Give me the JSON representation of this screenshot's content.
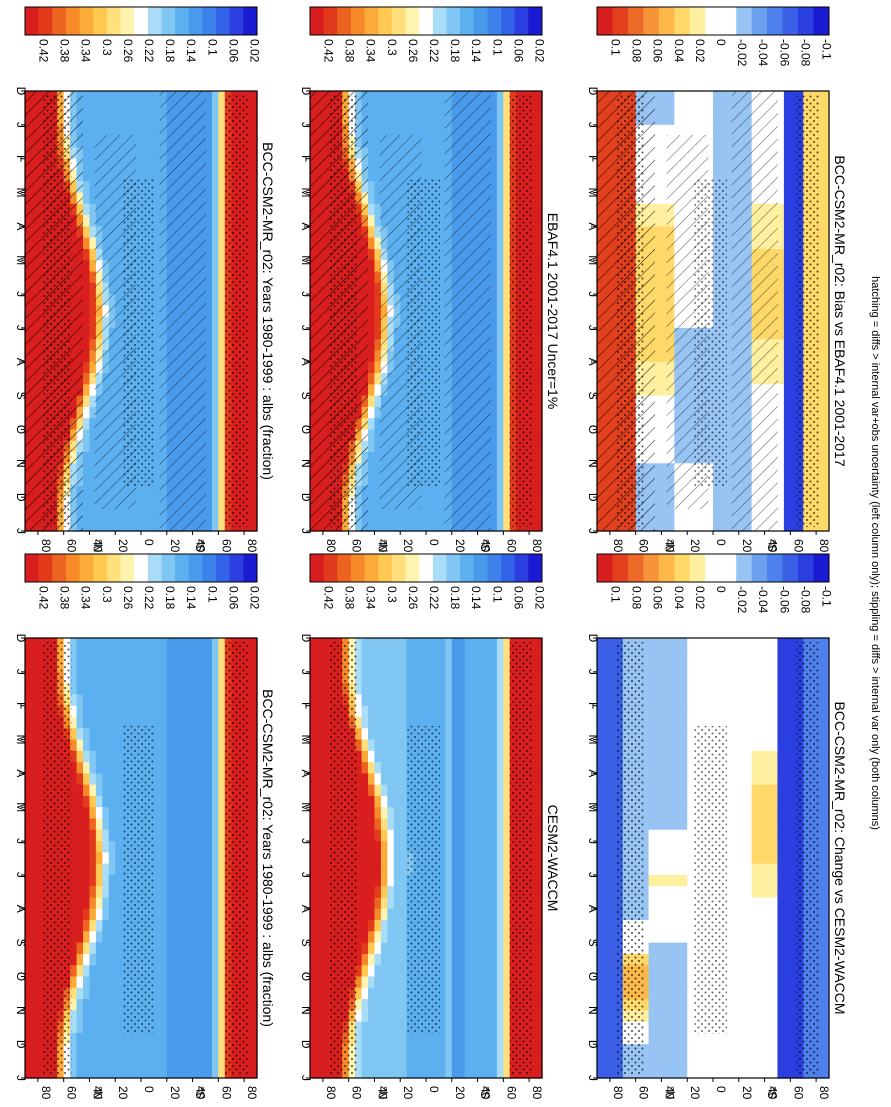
{
  "footnote": "hatching = diffs > internal var+obs uncertainty (left column only); stippling = diffs > internal var only (both columns)",
  "months": [
    "D",
    "J",
    "F",
    "M",
    "A",
    "M",
    "J",
    "J",
    "A",
    "S",
    "O",
    "N",
    "D",
    "J"
  ],
  "lat_labels": [
    "80",
    "60",
    "40",
    "20",
    "0",
    "20",
    "40",
    "60",
    "80"
  ],
  "hemi_labels": [
    "°N",
    "°S"
  ],
  "chart_data": [
    {
      "type": "heatmap",
      "title": "BCC-CSM2-MR_r02: Years 1980-1999 : albs (fraction)",
      "x": "month",
      "y": "latitude",
      "ylim": [
        -90,
        90
      ],
      "colorbar": [
        "0.42",
        "0.38",
        "0.34",
        "0.3",
        "0.26",
        "0.22",
        "0.18",
        "0.14",
        "0.1",
        "0.06",
        "0.02"
      ],
      "range": [
        0,
        0.44
      ],
      "palette": "albedo",
      "overlay": [
        "hatching",
        "stippling"
      ]
    },
    {
      "type": "heatmap",
      "title": "EBAF4.1 2001-2017 Uncer=1%",
      "x": "month",
      "y": "latitude",
      "ylim": [
        -90,
        90
      ],
      "colorbar": [
        "0.42",
        "0.38",
        "0.34",
        "0.3",
        "0.26",
        "0.22",
        "0.18",
        "0.14",
        "0.1",
        "0.06",
        "0.02"
      ],
      "range": [
        0,
        0.44
      ],
      "palette": "albedo",
      "overlay": [
        "hatching",
        "stippling"
      ]
    },
    {
      "type": "heatmap",
      "title": "BCC-CSM2-MR_r02: Bias vs EBAF4.1 2001-2017",
      "x": "month",
      "y": "latitude",
      "ylim": [
        -90,
        90
      ],
      "colorbar": [
        "0.1",
        "0.08",
        "0.06",
        "0.04",
        "0.02",
        "0",
        "-0.02",
        "-0.04",
        "-0.06",
        "-0.08",
        "-0.1"
      ],
      "range": [
        -0.12,
        0.12
      ],
      "palette": "diff",
      "overlay": [
        "hatching",
        "stippling"
      ]
    },
    {
      "type": "heatmap",
      "title": "BCC-CSM2-MR_r02: Years 1980-1999 : albs (fraction)",
      "x": "month",
      "y": "latitude",
      "ylim": [
        -90,
        90
      ],
      "colorbar": [
        "0.42",
        "0.38",
        "0.34",
        "0.3",
        "0.26",
        "0.22",
        "0.18",
        "0.14",
        "0.1",
        "0.06",
        "0.02"
      ],
      "range": [
        0,
        0.44
      ],
      "palette": "albedo",
      "overlay": [
        "stippling"
      ]
    },
    {
      "type": "heatmap",
      "title": "CESM2-WACCM",
      "x": "month",
      "y": "latitude",
      "ylim": [
        -90,
        90
      ],
      "colorbar": [
        "0.42",
        "0.38",
        "0.34",
        "0.3",
        "0.26",
        "0.22",
        "0.18",
        "0.14",
        "0.1",
        "0.06",
        "0.02"
      ],
      "range": [
        0,
        0.44
      ],
      "palette": "albedo",
      "overlay": [
        "stippling"
      ]
    },
    {
      "type": "heatmap",
      "title": "BCC-CSM2-MR_r02: Change vs CESM2-WACCM",
      "x": "month",
      "y": "latitude",
      "ylim": [
        -90,
        90
      ],
      "colorbar": [
        "0.1",
        "0.08",
        "0.06",
        "0.04",
        "0.02",
        "0",
        "-0.02",
        "-0.04",
        "-0.06",
        "-0.08",
        "-0.1"
      ],
      "range": [
        -0.12,
        0.12
      ],
      "palette": "diff",
      "overlay": [
        "stippling"
      ]
    }
  ],
  "colors": {
    "albedo": [
      "#1a1ad2",
      "#2b3fe0",
      "#3263e8",
      "#3d82ea",
      "#4a9aec",
      "#5cb0ef",
      "#80c6f2",
      "#a8dcf7",
      "#ffffff",
      "#fff3b0",
      "#ffe07a",
      "#ffc850",
      "#fdab38",
      "#f68a28",
      "#ec6420",
      "#e23a1a",
      "#d81e1e"
    ],
    "diff": [
      "#1a1ad2",
      "#2b3fe0",
      "#3a5fe6",
      "#4d80ea",
      "#6aa0ee",
      "#98c4f4",
      "#ffffff",
      "#ffffff",
      "#fff0a0",
      "#ffd86a",
      "#fcb848",
      "#f89438",
      "#ee6a28",
      "#e3401e",
      "#d81e1e"
    ]
  }
}
